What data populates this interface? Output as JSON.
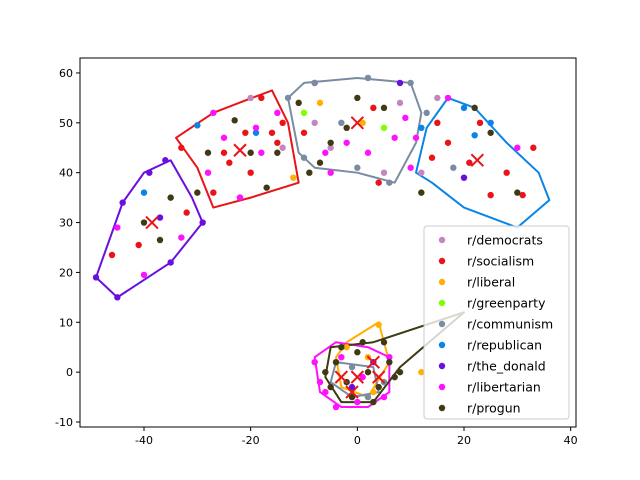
{
  "chart_data": {
    "type": "scatter",
    "title": "",
    "xlabel": "",
    "ylabel": "",
    "xlim": [
      -52,
      41
    ],
    "ylim": [
      -11,
      63
    ],
    "xticks": [
      -40,
      -20,
      0,
      20,
      40
    ],
    "yticks": [
      -10,
      0,
      10,
      20,
      30,
      40,
      50,
      60
    ],
    "grid": false,
    "legend_placement": "lower-right",
    "series": [
      {
        "name": "r/democrats",
        "color": "#c586c0",
        "points": [
          [
            -20,
            55
          ],
          [
            -5,
            45
          ],
          [
            5,
            40
          ],
          [
            -8,
            50
          ],
          [
            8,
            54
          ],
          [
            15,
            55
          ],
          [
            12,
            40
          ],
          [
            -14,
            45
          ]
        ]
      },
      {
        "name": "r/socialism",
        "color": "#e8141a",
        "points": [
          [
            -46,
            23.5
          ],
          [
            -41,
            25.5
          ],
          [
            -32,
            32
          ],
          [
            -33,
            45
          ],
          [
            -22,
            35
          ],
          [
            -24,
            42
          ],
          [
            -18,
            55
          ],
          [
            -14,
            50
          ],
          [
            -15,
            46
          ],
          [
            -16,
            48
          ],
          [
            -20,
            40
          ],
          [
            -10,
            48
          ],
          [
            3,
            53
          ],
          [
            4,
            38
          ],
          [
            -8,
            58
          ],
          [
            14,
            43
          ],
          [
            17,
            46
          ],
          [
            21,
            42
          ],
          [
            23,
            50
          ],
          [
            25,
            35.5
          ],
          [
            28,
            40
          ],
          [
            31,
            35.5
          ],
          [
            33,
            45
          ],
          [
            -27,
            36
          ],
          [
            -25,
            44
          ],
          [
            15,
            50
          ],
          [
            -21,
            48
          ]
        ]
      },
      {
        "name": "r/liberal",
        "color": "#ffb000",
        "points": [
          [
            -7,
            54
          ],
          [
            -12,
            39
          ],
          [
            1,
            50
          ],
          [
            4,
            9.5
          ],
          [
            12,
            0
          ],
          [
            2,
            3
          ],
          [
            -2,
            5
          ],
          [
            3,
            -4
          ]
        ]
      },
      {
        "name": "r/greenparty",
        "color": "#80ff00",
        "points": [
          [
            -10,
            52
          ],
          [
            5,
            49
          ]
        ]
      },
      {
        "name": "r/communism",
        "color": "#7a8ca3",
        "points": [
          [
            -13,
            55
          ],
          [
            -3,
            50
          ],
          [
            2,
            59
          ],
          [
            10,
            58
          ],
          [
            13,
            52
          ],
          [
            -8,
            58
          ],
          [
            -10,
            43
          ],
          [
            6,
            38
          ],
          [
            0,
            41
          ],
          [
            18,
            41
          ],
          [
            -1,
            1
          ],
          [
            2,
            -5
          ],
          [
            5,
            -2
          ]
        ]
      },
      {
        "name": "r/republican",
        "color": "#0a84e6",
        "points": [
          [
            -40,
            36
          ],
          [
            -30,
            49.5
          ],
          [
            -19,
            48
          ],
          [
            12,
            49
          ],
          [
            22,
            47.5
          ],
          [
            20,
            53
          ],
          [
            25,
            50
          ]
        ]
      },
      {
        "name": "r/the_donald",
        "color": "#6a0fe0",
        "points": [
          [
            -49,
            19
          ],
          [
            -45,
            15
          ],
          [
            -44,
            34
          ],
          [
            -36,
            42.5
          ],
          [
            -37,
            31
          ],
          [
            -29,
            30
          ],
          [
            -39,
            40
          ],
          [
            -35,
            22
          ],
          [
            8,
            58
          ],
          [
            20,
            39
          ],
          [
            -1,
            -3
          ],
          [
            3,
            2
          ]
        ]
      },
      {
        "name": "r/libertarian",
        "color": "#ff10ff",
        "points": [
          [
            -40,
            19.5
          ],
          [
            -33,
            27
          ],
          [
            -45,
            29
          ],
          [
            -27,
            52
          ],
          [
            -25,
            47
          ],
          [
            -19,
            49
          ],
          [
            -15,
            52
          ],
          [
            -22,
            35
          ],
          [
            -28,
            40
          ],
          [
            -18,
            44
          ],
          [
            -5,
            40
          ],
          [
            -6,
            44
          ],
          [
            -2,
            46
          ],
          [
            7,
            47
          ],
          [
            9,
            51
          ],
          [
            2,
            44
          ],
          [
            10,
            41
          ],
          [
            11,
            47
          ],
          [
            17,
            55
          ],
          [
            30,
            45
          ],
          [
            -7,
            -2
          ],
          [
            -4,
            -7
          ],
          [
            0,
            -6
          ],
          [
            5,
            -5
          ],
          [
            -8,
            2
          ],
          [
            -3,
            3
          ],
          [
            1,
            -1
          ],
          [
            6,
            3
          ],
          [
            -6,
            -4
          ]
        ]
      },
      {
        "name": "r/progun",
        "color": "#3f3a12",
        "points": [
          [
            -40,
            30
          ],
          [
            -35,
            35
          ],
          [
            -37,
            26.5
          ],
          [
            -30,
            36
          ],
          [
            -28,
            44
          ],
          [
            -20,
            44
          ],
          [
            -17,
            37
          ],
          [
            -23,
            50.5
          ],
          [
            -15,
            44
          ],
          [
            -11,
            54
          ],
          [
            -9,
            40
          ],
          [
            0,
            55
          ],
          [
            5,
            53
          ],
          [
            -2,
            49
          ],
          [
            -5,
            46
          ],
          [
            -7,
            42
          ],
          [
            12,
            36
          ],
          [
            22,
            53
          ],
          [
            30,
            36
          ],
          [
            25,
            48
          ],
          [
            -4,
            2
          ],
          [
            -2,
            -2
          ],
          [
            2,
            0
          ],
          [
            4,
            -3
          ],
          [
            6,
            2
          ],
          [
            -6,
            0
          ],
          [
            0,
            4
          ],
          [
            -1,
            -5
          ],
          [
            3,
            -6
          ],
          [
            7,
            -1
          ],
          [
            -5,
            -3
          ],
          [
            1,
            6
          ],
          [
            -3,
            5
          ],
          [
            5,
            6
          ],
          [
            8,
            0
          ]
        ]
      }
    ],
    "centroids": [
      [
        -38.5,
        30
      ],
      [
        -22,
        44.5
      ],
      [
        0,
        50
      ],
      [
        22.5,
        42.5
      ],
      [
        3,
        2
      ],
      [
        0,
        -1
      ],
      [
        -3,
        -1
      ],
      [
        4,
        -1
      ],
      [
        -1,
        -4
      ]
    ],
    "hulls": [
      {
        "color": "#6a0fe0",
        "points": [
          [
            -49,
            19
          ],
          [
            -45,
            15
          ],
          [
            -35,
            22
          ],
          [
            -29,
            30
          ],
          [
            -31,
            35
          ],
          [
            -35,
            42.5
          ],
          [
            -40,
            40
          ],
          [
            -44,
            34
          ]
        ]
      },
      {
        "color": "#e8141a",
        "points": [
          [
            -34,
            47
          ],
          [
            -27,
            52
          ],
          [
            -21,
            54.5
          ],
          [
            -16,
            56.5
          ],
          [
            -13,
            50
          ],
          [
            -11,
            38
          ],
          [
            -20,
            35
          ],
          [
            -27,
            33
          ],
          [
            -30,
            41
          ]
        ]
      },
      {
        "color": "#7a8ca3",
        "points": [
          [
            -13,
            55
          ],
          [
            -10,
            58
          ],
          [
            0,
            59
          ],
          [
            10,
            58
          ],
          [
            12,
            52
          ],
          [
            11,
            46
          ],
          [
            7,
            38
          ],
          [
            0,
            40
          ],
          [
            -8,
            41
          ],
          [
            -11,
            44
          ]
        ]
      },
      {
        "color": "#0a84e6",
        "points": [
          [
            11,
            40
          ],
          [
            13,
            49
          ],
          [
            17,
            55
          ],
          [
            22,
            53
          ],
          [
            28,
            46
          ],
          [
            34,
            40
          ],
          [
            36,
            34.5
          ],
          [
            30,
            29
          ],
          [
            20,
            33
          ],
          [
            14,
            38
          ]
        ]
      },
      {
        "color": "#ffb000",
        "points": [
          [
            -2,
            6
          ],
          [
            4,
            10
          ],
          [
            6,
            2
          ],
          [
            2,
            -5
          ],
          [
            -3,
            -3
          ],
          [
            -4,
            3
          ]
        ]
      },
      {
        "color": "#ff10ff",
        "points": [
          [
            -8,
            3
          ],
          [
            -4,
            6
          ],
          [
            2,
            5
          ],
          [
            6,
            3
          ],
          [
            6,
            -4
          ],
          [
            2,
            -7
          ],
          [
            -3,
            -7
          ],
          [
            -7,
            -4
          ]
        ]
      },
      {
        "color": "#7a8ca3",
        "points": [
          [
            -4,
            2
          ],
          [
            3,
            1
          ],
          [
            4,
            -4
          ],
          [
            -1,
            -5
          ],
          [
            -5,
            -2
          ]
        ]
      },
      {
        "color": "#3f3a12",
        "points": [
          [
            -5,
            5
          ],
          [
            3,
            6
          ],
          [
            20,
            12
          ],
          [
            8,
            1
          ],
          [
            3,
            -6
          ],
          [
            -3,
            -6
          ],
          [
            -6,
            -1
          ]
        ]
      }
    ]
  }
}
